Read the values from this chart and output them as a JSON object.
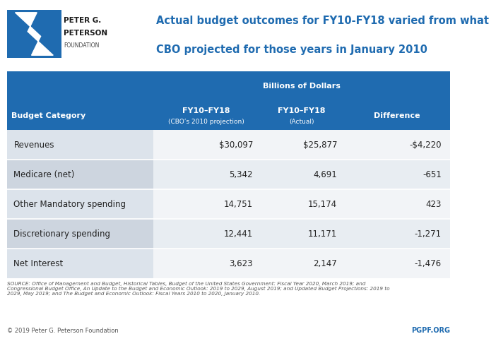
{
  "title_line1": "Actual budget outcomes for FY10-FY18 varied from what",
  "title_line2": "CBO projected for those years in January 2010",
  "header_row0": "Billions of Dollars",
  "header_col0": "Budget Category",
  "header_col1_line1": "FY10–FY18",
  "header_col1_line2": "(CBO’s 2010 projection)",
  "header_col2_line1": "FY10–FY18",
  "header_col2_line2": "(Actual)",
  "header_col3": "Difference",
  "rows": [
    {
      "category": "Revenues",
      "col1": "$30,097",
      "col2": "$25,877",
      "col3": "-$4,220"
    },
    {
      "category": "Medicare (net)",
      "col1": "5,342",
      "col2": "4,691",
      "col3": "-651"
    },
    {
      "category": "Other Mandatory spending",
      "col1": "14,751",
      "col2": "15,174",
      "col3": "423"
    },
    {
      "category": "Discretionary spending",
      "col1": "12,441",
      "col2": "11,171",
      "col3": "-1,271"
    },
    {
      "category": "Net Interest",
      "col1": "3,623",
      "col2": "2,147",
      "col3": "-1,476"
    }
  ],
  "source_text": "SOURCE: Office of Management and Budget, Historical Tables, Budget of the United States Government: Fiscal Year 2020, March 2019; and\nCongressional Budget Office, An Update to the Budget and Economic Outlook: 2019 to 2029, August 2019; and Updated Budget Projections: 2019 to\n2029, May 2019; and The Budget and Economic Outlook: Fiscal Years 2010 to 2020, January 2010.",
  "copyright_text": "© 2019 Peter G. Peterson Foundation",
  "pgpf_text": "PGPF.ORG",
  "header_blue": "#1f6bb0",
  "header_text_color": "#ffffff",
  "row_alt1": "#e8edf2",
  "row_alt2": "#f2f4f7",
  "col0_alt1": "#dce3eb",
  "col0_alt2": "#cdd5df",
  "title_color": "#1f6bb0",
  "source_color": "#555555",
  "pgpf_color": "#1f6bb0",
  "bg_color": "#ffffff"
}
